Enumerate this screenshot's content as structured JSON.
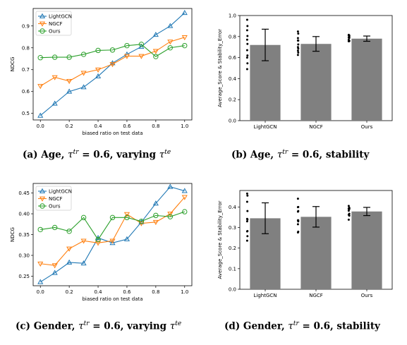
{
  "colors": {
    "lightgcn": "#1f77b4",
    "ngcf": "#ff7f0e",
    "ours": "#2ca02c",
    "bar": "#808080",
    "dots": "#000000"
  },
  "captions": [
    {
      "pre": "(a) Age, ",
      "sym": "τ",
      "sup": "tr",
      "eq": " = 0.6, varying ",
      "sym2": "τ",
      "sup2": "te"
    },
    {
      "pre": "(b) Age, ",
      "sym": "τ",
      "sup": "tr",
      "eq": " = 0.6, stability",
      "sym2": "",
      "sup2": ""
    },
    {
      "pre": "(c) Gender, ",
      "sym": "τ",
      "sup": "tr",
      "eq": " = 0.6, varying ",
      "sym2": "τ",
      "sup2": "te"
    },
    {
      "pre": "(d) Gender, ",
      "sym": "τ",
      "sup": "tr",
      "eq": " = 0.6, stability",
      "sym2": "",
      "sup2": ""
    }
  ],
  "chart_data": [
    {
      "type": "line",
      "xlabel": "biased ratio on test data",
      "ylabel": "NDCG",
      "xlim": [
        -0.05,
        1.05
      ],
      "ylim": [
        0.47,
        0.98
      ],
      "xticks": [
        "0.0",
        "0.2",
        "0.4",
        "0.6",
        "0.8",
        "1.0"
      ],
      "yticks": [
        "0.5",
        "0.6",
        "0.7",
        "0.8",
        "0.9"
      ],
      "legend_position": "top-left",
      "x": [
        0.0,
        0.1,
        0.2,
        0.3,
        0.4,
        0.5,
        0.6,
        0.7,
        0.8,
        0.9,
        1.0
      ],
      "series": [
        {
          "name": "LightGCN",
          "marker": "triangle-up",
          "values": [
            0.49,
            0.545,
            0.6,
            0.62,
            0.67,
            0.73,
            0.77,
            0.805,
            0.86,
            0.9,
            0.96
          ]
        },
        {
          "name": "NGCF",
          "marker": "triangle-down",
          "values": [
            0.625,
            0.665,
            0.648,
            0.685,
            0.7,
            0.725,
            0.762,
            0.762,
            0.785,
            0.828,
            0.848
          ]
        },
        {
          "name": "Ours",
          "marker": "circle",
          "values": [
            0.755,
            0.757,
            0.757,
            0.77,
            0.788,
            0.79,
            0.81,
            0.816,
            0.76,
            0.8,
            0.81
          ]
        }
      ]
    },
    {
      "type": "bar",
      "ylabel": "Average_Score  &  Stability_Error",
      "categories": [
        "LightGCN",
        "NGCF",
        "Ours"
      ],
      "values": [
        0.72,
        0.73,
        0.78
      ],
      "errors": [
        0.15,
        0.07,
        0.025
      ],
      "ylim": [
        0.0,
        1.0
      ],
      "yticks": [
        "0.0",
        "0.2",
        "0.4",
        "0.6",
        "0.8",
        "1.0"
      ],
      "points": [
        [
          0.49,
          0.545,
          0.6,
          0.62,
          0.67,
          0.73,
          0.77,
          0.805,
          0.86,
          0.9,
          0.96
        ],
        [
          0.625,
          0.648,
          0.665,
          0.685,
          0.7,
          0.725,
          0.762,
          0.762,
          0.785,
          0.828,
          0.848
        ],
        [
          0.755,
          0.757,
          0.757,
          0.76,
          0.77,
          0.788,
          0.79,
          0.8,
          0.81,
          0.81,
          0.816
        ]
      ]
    },
    {
      "type": "line",
      "xlabel": "biased ratio on test data",
      "ylabel": "NDCG",
      "xlim": [
        -0.05,
        1.05
      ],
      "ylim": [
        0.227,
        0.473
      ],
      "xticks": [
        "0.0",
        "0.2",
        "0.4",
        "0.6",
        "0.8",
        "1.0"
      ],
      "yticks": [
        "0.25",
        "0.30",
        "0.35",
        "0.40",
        "0.45"
      ],
      "legend_position": "top-left",
      "x": [
        0.0,
        0.1,
        0.2,
        0.3,
        0.4,
        0.5,
        0.6,
        0.7,
        0.8,
        0.9,
        1.0
      ],
      "series": [
        {
          "name": "LightGCN",
          "marker": "triangle-up",
          "values": [
            0.236,
            0.258,
            0.283,
            0.281,
            0.342,
            0.33,
            0.339,
            0.38,
            0.425,
            0.465,
            0.455
          ]
        },
        {
          "name": "NGCF",
          "marker": "triangle-down",
          "values": [
            0.28,
            0.276,
            0.316,
            0.335,
            0.33,
            0.335,
            0.399,
            0.377,
            0.38,
            0.4,
            0.44
          ]
        },
        {
          "name": "Ours",
          "marker": "circle",
          "values": [
            0.362,
            0.367,
            0.358,
            0.391,
            0.338,
            0.391,
            0.391,
            0.382,
            0.396,
            0.393,
            0.405
          ]
        }
      ]
    },
    {
      "type": "bar",
      "ylabel": "Average_Score  &  Stability_Error",
      "categories": [
        "LightGCN",
        "NGCF",
        "Ours"
      ],
      "values": [
        0.345,
        0.352,
        0.378
      ],
      "errors": [
        0.075,
        0.05,
        0.02
      ],
      "ylim": [
        0.0,
        0.48
      ],
      "yticks": [
        "0.0",
        "0.1",
        "0.2",
        "0.3",
        "0.4"
      ],
      "points": [
        [
          0.236,
          0.258,
          0.281,
          0.283,
          0.33,
          0.339,
          0.342,
          0.38,
          0.425,
          0.455,
          0.465
        ],
        [
          0.276,
          0.28,
          0.316,
          0.33,
          0.335,
          0.335,
          0.377,
          0.38,
          0.399,
          0.4,
          0.44
        ],
        [
          0.338,
          0.358,
          0.362,
          0.367,
          0.382,
          0.391,
          0.391,
          0.391,
          0.393,
          0.396,
          0.405
        ]
      ]
    }
  ]
}
